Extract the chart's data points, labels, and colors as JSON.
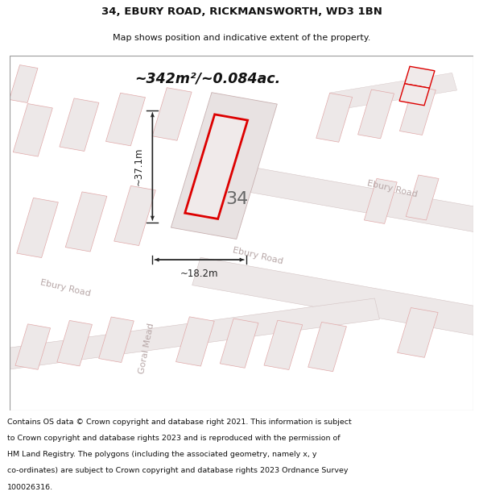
{
  "title_line1": "34, EBURY ROAD, RICKMANSWORTH, WD3 1BN",
  "title_line2": "Map shows position and indicative extent of the property.",
  "area_text": "~342m²/~0.084ac.",
  "dim_vertical": "~37.1m",
  "dim_horizontal": "~18.2m",
  "number_label": "34",
  "road_label_ebury_right": "Ebury Road",
  "road_label_ebury_bottom": "Ebury Road",
  "road_label_vertical": "Goral Mead",
  "road_label_center": "Ebury Road",
  "footer_lines": [
    "Contains OS data © Crown copyright and database right 2021. This information is subject",
    "to Crown copyright and database rights 2023 and is reproduced with the permission of",
    "HM Land Registry. The polygons (including the associated geometry, namely x, y",
    "co-ordinates) are subject to Crown copyright and database rights 2023 Ordnance Survey",
    "100026316."
  ],
  "bg_white": "#ffffff",
  "map_bg": "#f7f4f4",
  "road_fill": "#ede8e8",
  "road_stroke": "#d4c4c4",
  "block_fill": "#ede8e8",
  "block_stroke": "#e0a8a8",
  "highlight_fill": "#f0eaea",
  "highlight_stroke": "#dd0000",
  "lot_fill": "#e8e2e2",
  "lot_stroke": "#c8b0b0",
  "dim_color": "#222222",
  "title_color": "#111111",
  "road_text_color": "#b8a8a8",
  "footer_color": "#111111",
  "area_text_color": "#111111"
}
